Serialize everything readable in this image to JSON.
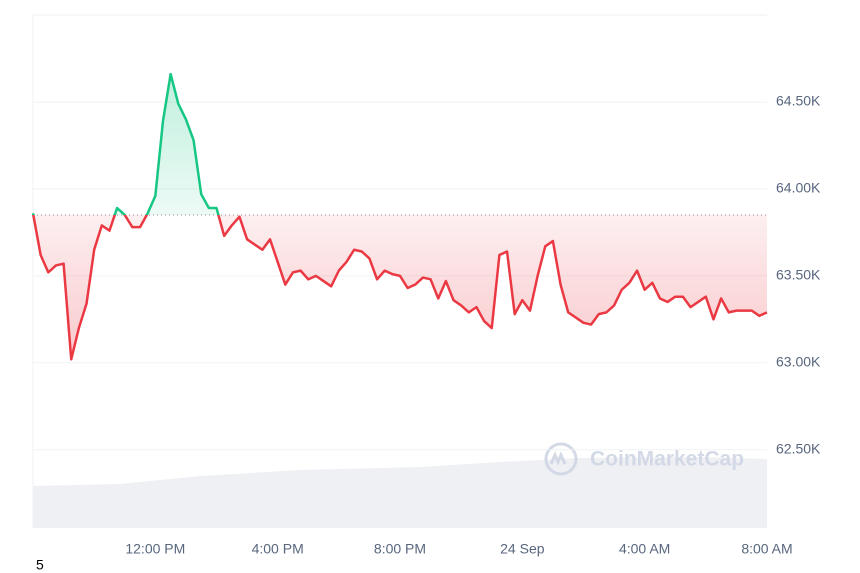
{
  "chart_data": {
    "type": "line",
    "categories": [
      null,
      null,
      null,
      null,
      null,
      null,
      null,
      null,
      null,
      null,
      null,
      null,
      null,
      null,
      null,
      null,
      "12:00 PM",
      null,
      null,
      null,
      null,
      null,
      null,
      null,
      null,
      null,
      null,
      null,
      null,
      null,
      null,
      null,
      "4:00 PM",
      null,
      null,
      null,
      null,
      null,
      null,
      null,
      null,
      null,
      null,
      null,
      null,
      null,
      null,
      null,
      "8:00 PM",
      null,
      null,
      null,
      null,
      null,
      null,
      null,
      null,
      null,
      null,
      null,
      null,
      null,
      null,
      null,
      "24 Sep",
      null,
      null,
      null,
      null,
      null,
      null,
      null,
      null,
      null,
      null,
      null,
      null,
      null,
      null,
      null,
      "4:00 AM",
      null,
      null,
      null,
      null,
      null,
      null,
      null,
      null,
      null,
      null,
      null,
      null,
      null,
      null,
      null,
      "8:00 AM"
    ],
    "values": [
      63860,
      63620,
      63520,
      63560,
      63570,
      63020,
      63200,
      63340,
      63650,
      63790,
      63760,
      63890,
      63850,
      63780,
      63780,
      63860,
      63960,
      64390,
      64660,
      64490,
      64400,
      64280,
      63970,
      63890,
      63890,
      63730,
      63790,
      63840,
      63710,
      63680,
      63650,
      63710,
      63580,
      63450,
      63520,
      63530,
      63480,
      63500,
      63470,
      63440,
      63530,
      63580,
      63650,
      63640,
      63600,
      63480,
      63530,
      63510,
      63500,
      63430,
      63450,
      63490,
      63480,
      63370,
      63470,
      63360,
      63330,
      63290,
      63320,
      63240,
      63200,
      63620,
      63640,
      63280,
      63360,
      63300,
      63500,
      63670,
      63700,
      63450,
      63290,
      63260,
      63230,
      63220,
      63280,
      63290,
      63330,
      63420,
      63460,
      63530,
      63420,
      63460,
      63370,
      63350,
      63380,
      63380,
      63320,
      63350,
      63380,
      63250,
      63370,
      63290,
      63300,
      63300,
      63300,
      63270,
      63290
    ],
    "baseline": 63850,
    "color_up": "#16c784",
    "color_down": "#ea3943",
    "ylim": [
      62050,
      65000
    ],
    "yticks": [
      {
        "value": 62500,
        "label": "62.50K"
      },
      {
        "value": 63000,
        "label": "63.00K"
      },
      {
        "value": 63500,
        "label": "63.50K"
      },
      {
        "value": 64000,
        "label": "64.00K"
      },
      {
        "value": 64500,
        "label": "64.50K"
      }
    ],
    "grid": true,
    "watermark": "CoinMarketCap",
    "footnote": "5"
  }
}
